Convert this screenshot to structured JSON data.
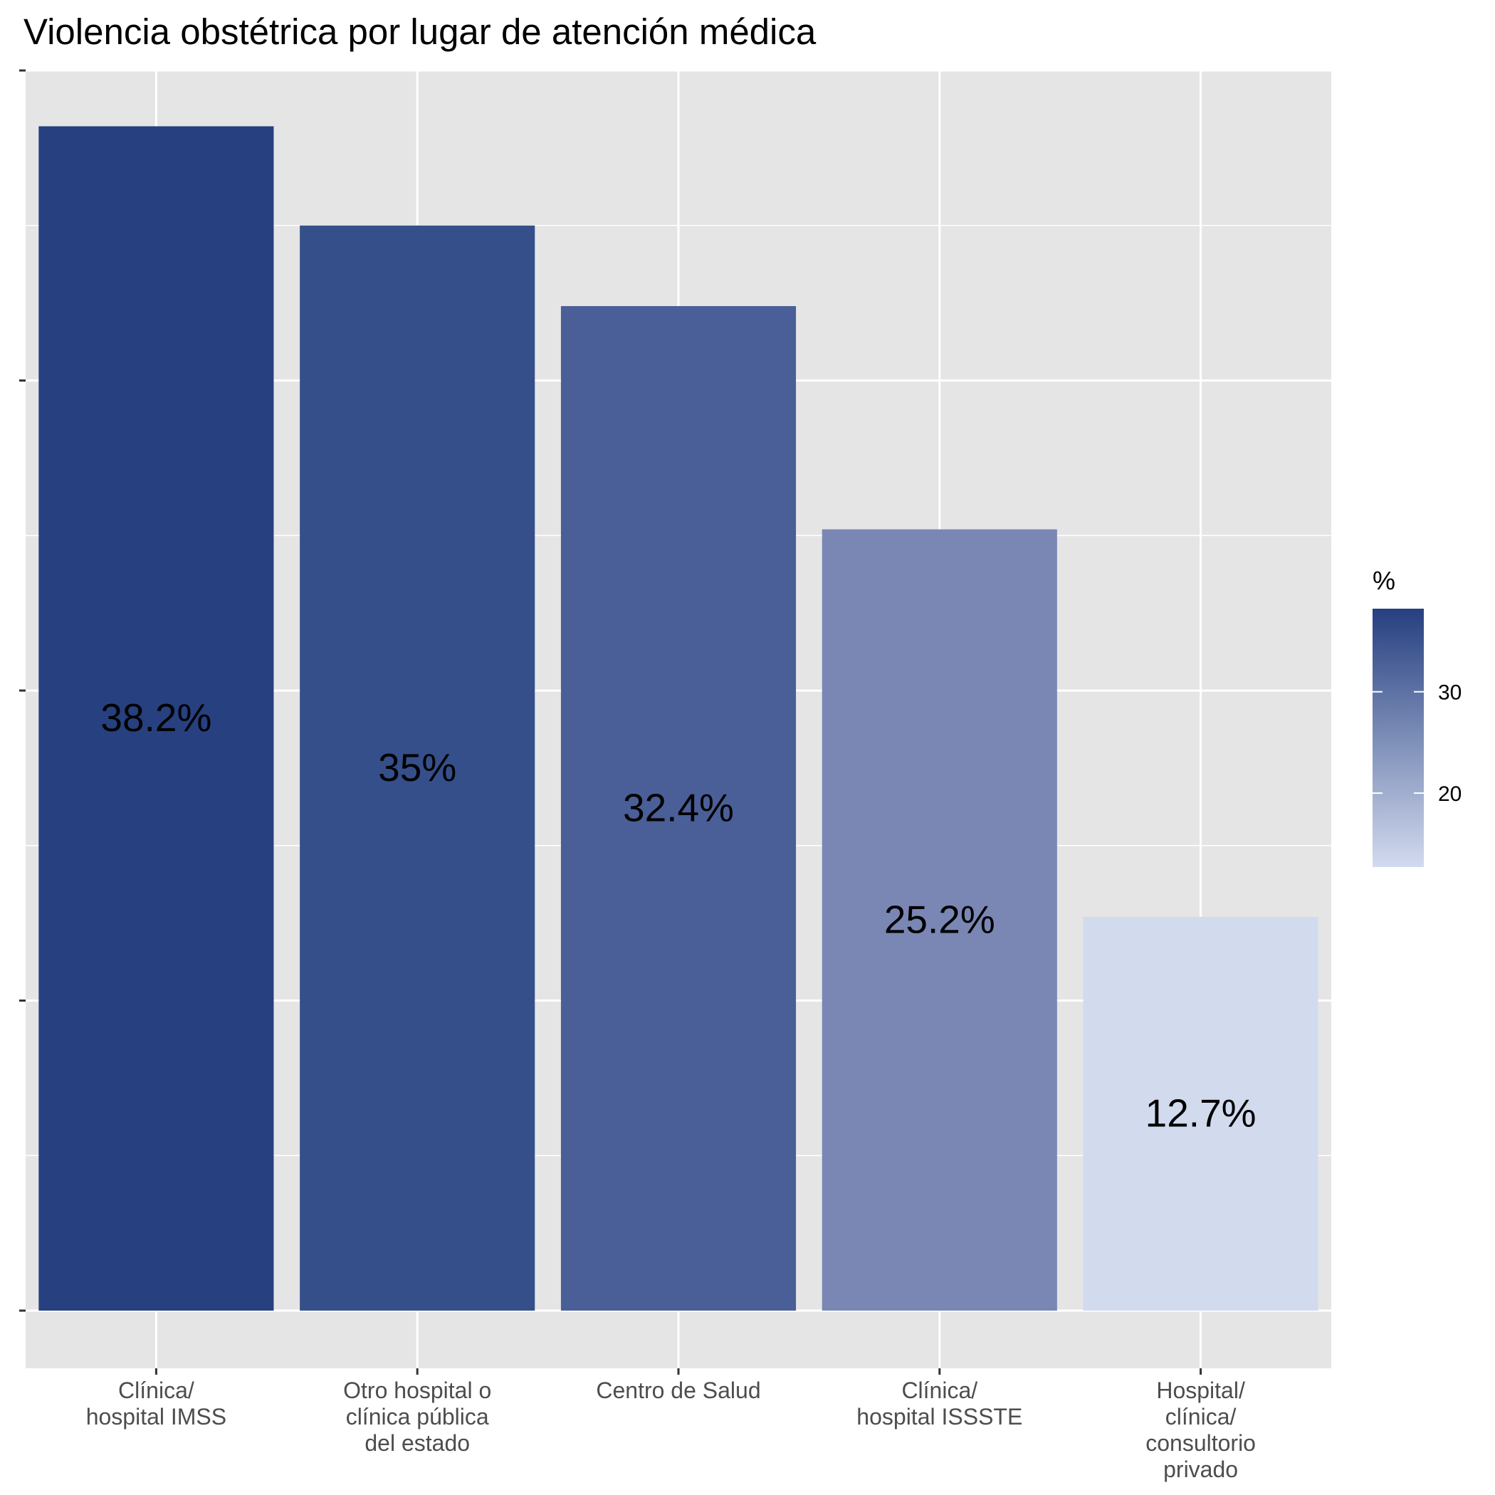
{
  "chart_data": {
    "type": "bar",
    "title": "Violencia obstétrica por lugar de atención médica",
    "xlabel": "",
    "ylabel": "",
    "categories": [
      [
        "Clínica/",
        "hospital IMSS"
      ],
      [
        "Otro hospital o",
        "clínica pública",
        "del estado"
      ],
      [
        "Centro de Salud"
      ],
      [
        "Clínica/",
        "hospital ISSSTE"
      ],
      [
        "Hospital/",
        "clínica/",
        "consultorio",
        "privado"
      ]
    ],
    "values": [
      38.2,
      35,
      32.4,
      25.2,
      12.7
    ],
    "data_labels": [
      "38.2%",
      "35%",
      "32.4%",
      "25.2%",
      "12.7%"
    ],
    "ylim": [
      -2,
      40
    ],
    "y_ticks_labeled": false,
    "grid": true,
    "legend": {
      "title": "%",
      "placement": "right",
      "type": "colorbar",
      "range": [
        12.7,
        38.2
      ],
      "ticks": [
        20,
        30
      ],
      "tick_labels": [
        "20",
        "30"
      ],
      "color_low": "#d2daee",
      "color_high": "#264080"
    },
    "bar_colors": [
      "#264080",
      "#354f8b",
      "#4a5f97",
      "#7a87b5",
      "#d2daee"
    ],
    "panel_background": "#e5e5e5",
    "grid_color": "#ffffff"
  }
}
